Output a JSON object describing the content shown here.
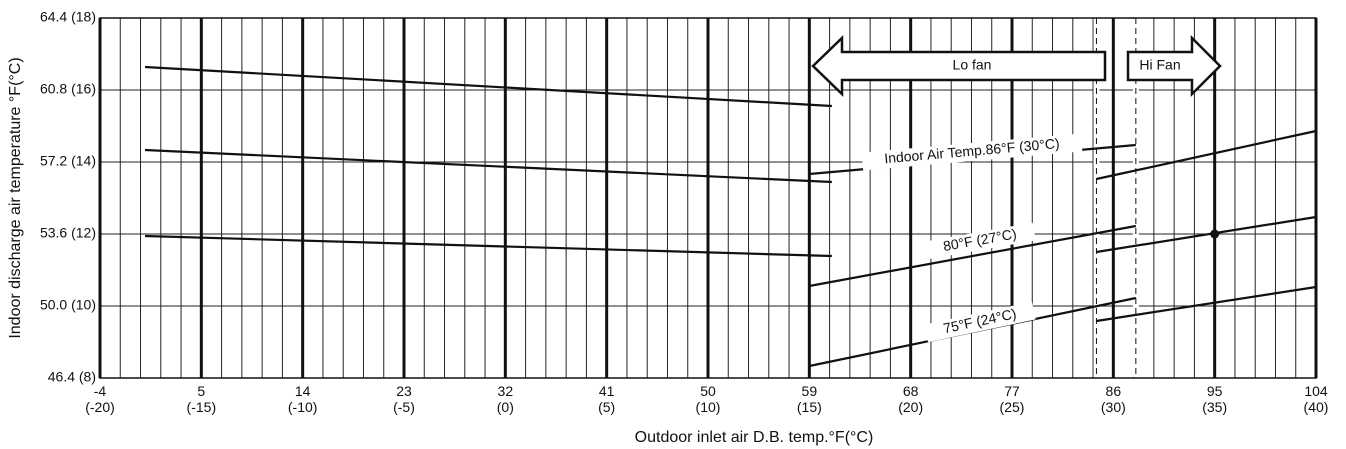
{
  "chart_data": {
    "type": "line",
    "xlabel": "Outdoor inlet air D.B. temp.°F(°C)",
    "ylabel": "Indoor discharge air temperature °F(°C)",
    "xlim": [
      -4,
      104
    ],
    "ylim": [
      46.4,
      64.4
    ],
    "xticks": [
      {
        "value": -4,
        "label": "-4 (-20)"
      },
      {
        "value": 5,
        "label": "5 (-15)"
      },
      {
        "value": 14,
        "label": "14 (-10)"
      },
      {
        "value": 23,
        "label": "23 (-5)"
      },
      {
        "value": 32,
        "label": "32 (0)"
      },
      {
        "value": 41,
        "label": "41 (5)"
      },
      {
        "value": 50,
        "label": "50 (10)"
      },
      {
        "value": 59,
        "label": "59 (15)"
      },
      {
        "value": 68,
        "label": "68 (20)"
      },
      {
        "value": 77,
        "label": "77 (25)"
      },
      {
        "value": 86,
        "label": "86 (30)"
      },
      {
        "value": 95,
        "label": "95 (35)"
      },
      {
        "value": 104,
        "label": "104 (40)"
      }
    ],
    "yticks": [
      {
        "value": 46.4,
        "label": "46.4 (8)"
      },
      {
        "value": 50.0,
        "label": "50.0 (10)"
      },
      {
        "value": 53.6,
        "label": "53.6 (12)"
      },
      {
        "value": 57.2,
        "label": "57.2 (14)"
      },
      {
        "value": 60.8,
        "label": "60.8 (16)"
      },
      {
        "value": 64.4,
        "label": "64.4 (18)"
      }
    ],
    "minor_x_step": 1.8,
    "color": "#111111",
    "series": [
      {
        "x": [
          0,
          61
        ],
        "values": [
          61.95,
          60.0
        ]
      },
      {
        "x": [
          0,
          61
        ],
        "values": [
          57.8,
          56.2
        ]
      },
      {
        "x": [
          0,
          61
        ],
        "values": [
          53.5,
          52.5
        ]
      },
      {
        "x": [
          59,
          88
        ],
        "values": [
          56.6,
          58.05
        ]
      },
      {
        "x": [
          59,
          88
        ],
        "values": [
          51.0,
          54.0
        ]
      },
      {
        "x": [
          59,
          88
        ],
        "values": [
          47.0,
          50.4
        ]
      },
      {
        "x": [
          84.5,
          104
        ],
        "values": [
          56.35,
          58.75
        ]
      },
      {
        "x": [
          84.5,
          104
        ],
        "values": [
          52.7,
          54.45
        ]
      },
      {
        "x": [
          84.5,
          104
        ],
        "values": [
          49.25,
          50.95
        ]
      }
    ],
    "dashed_x": [
      84.5,
      88
    ],
    "point": {
      "x": 95,
      "y": 53.6
    },
    "annotations": [
      "Indoor Air Temp.86°F (30°C)",
      "80°F (27°C)",
      "75°F (24°C)"
    ],
    "arrows": [
      "Lo fan",
      "Hi Fan"
    ]
  }
}
